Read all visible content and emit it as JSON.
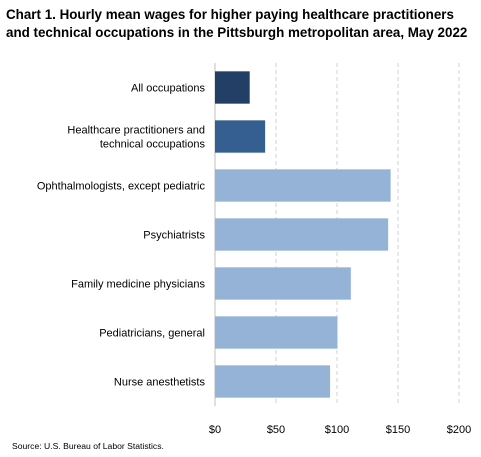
{
  "title": "Chart 1. Hourly mean wages for higher paying healthcare practitioners and technical occupations in the Pittsburgh metropolitan area, May 2022",
  "source": "Source: U.S. Bureau of Labor Statistics.",
  "chart_data": {
    "type": "bar",
    "orientation": "horizontal",
    "categories": [
      [
        "All occupations"
      ],
      [
        "Healthcare practitioners and",
        "technical occupations"
      ],
      [
        "Ophthalmologists, except pediatric"
      ],
      [
        "Psychiatrists"
      ],
      [
        "Family medicine physicians"
      ],
      [
        "Pediatricians, general"
      ],
      [
        "Nurse anesthetists"
      ]
    ],
    "values": [
      28.45,
      41.1,
      143.95,
      141.93,
      111.36,
      100.39,
      94.31
    ],
    "bar_colors": [
      "#243f66",
      "#365f91",
      "#95b3d7",
      "#95b3d7",
      "#95b3d7",
      "#95b3d7",
      "#95b3d7"
    ],
    "xlim": [
      0,
      200
    ],
    "x_ticks": [
      0,
      50,
      100,
      150,
      200
    ],
    "x_tick_labels": [
      "$0",
      "$50",
      "$100",
      "$150",
      "$200"
    ],
    "grid": true,
    "xlabel": "",
    "ylabel": ""
  }
}
